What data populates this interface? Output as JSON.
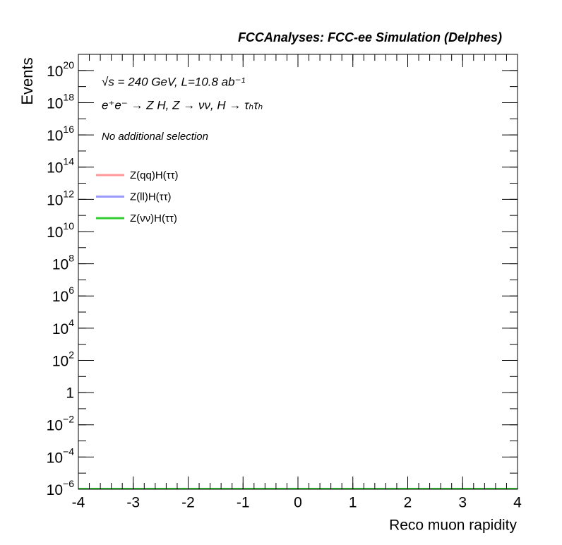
{
  "chart_data": {
    "type": "histogram",
    "title": "FCCAnalyses: FCC-ee Simulation (Delphes)",
    "annotations": [
      "√s = 240 GeV, L=10.8 ab⁻¹",
      "e⁺e⁻ → Z H, Z → νν, H → τₕτₕ",
      "No additional selection"
    ],
    "x_label": "Reco muon rapidity",
    "y_label": "Events",
    "xlim": [
      -4,
      4
    ],
    "xticks": [
      -4,
      -3,
      -2,
      -1,
      0,
      1,
      2,
      3,
      4
    ],
    "ylim": [
      1e-06,
      1e+21
    ],
    "log_y": true,
    "yticks": [
      {
        "value": 1e-06,
        "label": "10^−6"
      },
      {
        "value": 0.0001,
        "label": "10^−4"
      },
      {
        "value": 0.01,
        "label": "10^−2"
      },
      1,
      {
        "value": 100,
        "label": "10^2"
      },
      {
        "value": 10000.0,
        "label": "10^4"
      },
      {
        "value": 1000000.0,
        "label": "10^6"
      },
      {
        "value": 100000000.0,
        "label": "10^8"
      },
      {
        "value": 10000000000.0,
        "label": "10^10"
      },
      {
        "value": 1000000000000.0,
        "label": "10^12"
      },
      {
        "value": 100000000000000.0,
        "label": "10^14"
      },
      {
        "value": 1e+16,
        "label": "10^16"
      },
      {
        "value": 1e+18,
        "label": "10^18"
      },
      {
        "value": 1e+20,
        "label": "10^20"
      }
    ],
    "legend": "top-left",
    "series": [
      {
        "name": "Z(qq)H(ττ)",
        "color": "#ff9999"
      },
      {
        "name": "Z(ll)H(ττ)",
        "color": "#9999ff"
      },
      {
        "name": "Z(νν)H(ττ)",
        "color": "#33cc33"
      }
    ]
  }
}
